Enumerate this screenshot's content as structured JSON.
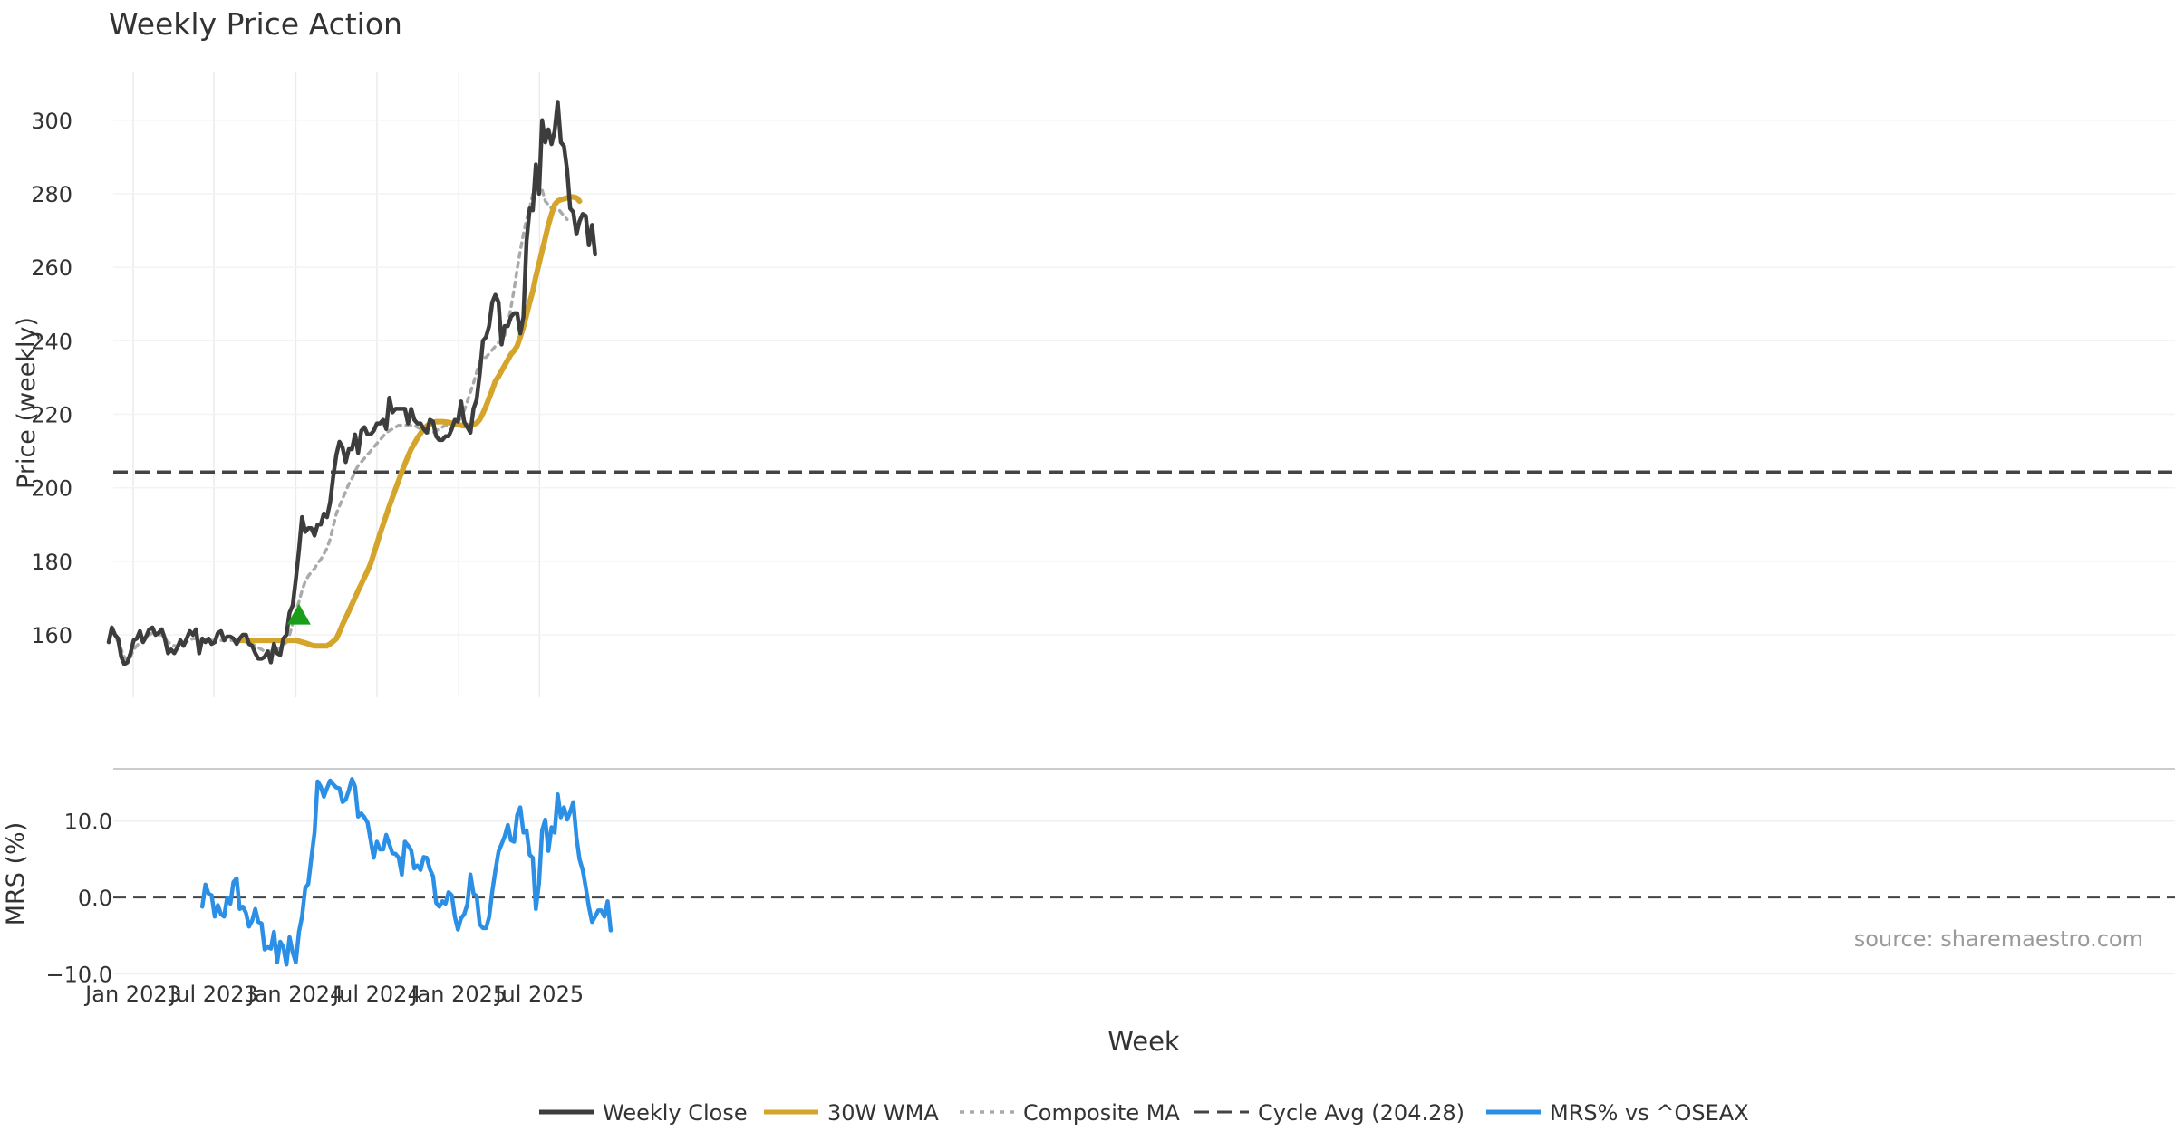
{
  "chart_data": [
    {
      "type": "line",
      "title": "Weekly Price Action",
      "ylabel": "Price (weekly)",
      "ylim": [
        143,
        313
      ],
      "yticks": [
        160,
        180,
        200,
        220,
        240,
        260,
        280,
        300
      ],
      "x_start": "2022-11-07",
      "x_step_days": 7,
      "cycle_avg": 204.28,
      "signal": {
        "week_index": 61,
        "price": 165.5,
        "color": "#1a9e1a"
      },
      "series": [
        {
          "name": "Weekly Close",
          "color": "#3d3d3d",
          "values": [
            158,
            162,
            160,
            159,
            154,
            152,
            152.5,
            155,
            158.5,
            159,
            161,
            158,
            159.5,
            161.5,
            162,
            160,
            160.5,
            161.5,
            159,
            155,
            156,
            155,
            156.5,
            158.5,
            157,
            159,
            161,
            160,
            161.5,
            155,
            159,
            158,
            159,
            157.5,
            158,
            160.5,
            161,
            158.5,
            159.5,
            159.5,
            159,
            157.5,
            159,
            160,
            160,
            157.5,
            157,
            155,
            153.5,
            153.5,
            154,
            155.5,
            152.5,
            157.5,
            155,
            154.5,
            159,
            160,
            166,
            168,
            175,
            183,
            192,
            188,
            189,
            189,
            187,
            190,
            190,
            193,
            192,
            196,
            203,
            209,
            212.5,
            211,
            207,
            210.5,
            210.5,
            214.5,
            209.5,
            215.5,
            216.5,
            214.5,
            214.5,
            215.5,
            217.5,
            217.5,
            218.5,
            216,
            224.5,
            220.5,
            221.5,
            221.5,
            221.5,
            221.5,
            217.5,
            221.5,
            218.5,
            217.5,
            217.5,
            216,
            215,
            218.5,
            218,
            214,
            213,
            213,
            214,
            214,
            216,
            218.5,
            218,
            223.5,
            218,
            216.5,
            215,
            221.5,
            224,
            231,
            240,
            241,
            244,
            250.5,
            252.5,
            250.5,
            239,
            244,
            244,
            246.5,
            247.5,
            247.5,
            242,
            246.5,
            267,
            276,
            275.5,
            288,
            280,
            300,
            294,
            297.5,
            293.5,
            297,
            305,
            294,
            293,
            286.5,
            276,
            275,
            269,
            272.5,
            274.5,
            274,
            266,
            271.5,
            263.5
          ],
          "start_index": 0
        },
        {
          "name": "30W WMA",
          "color": "#d4a52a",
          "values": [
            158.5,
            158.5,
            158.5,
            158.5,
            158.5,
            158.5,
            158.5,
            158.5,
            158.5,
            158.5,
            158.5,
            158.5,
            158.5,
            158.5,
            158.5,
            158.5,
            158.5,
            158.5,
            158.5,
            158.3,
            158,
            157.8,
            157.5,
            157.2,
            157,
            157,
            157,
            157,
            157,
            157.5,
            158.2,
            159,
            160.8,
            162.8,
            164.6,
            166.4,
            168.3,
            170.1,
            172,
            173.8,
            175.6,
            177.4,
            179.4,
            182,
            184.7,
            187.5,
            190,
            192.5,
            195,
            197.4,
            199.7,
            202,
            204.3,
            206.5,
            208.6,
            210.5,
            212,
            213.5,
            214.8,
            216,
            216.8,
            217.4,
            217.8,
            218,
            218,
            218,
            217.9,
            217.8,
            217.6,
            217.4,
            217.2,
            217,
            216.9,
            216.9,
            217,
            217.2,
            217.6,
            218.6,
            220.3,
            222.2,
            224.4,
            226.6,
            229,
            230.3,
            231.8,
            233.3,
            234.8,
            236.3,
            237.3,
            238.6,
            241,
            243.8,
            247,
            250.5,
            253.5,
            257.5,
            261,
            264.5,
            268,
            271.5,
            274.5,
            277,
            278,
            278.4,
            278.6,
            278.9,
            279.2,
            279.1,
            278.9,
            278
          ],
          "start_index": 42
        },
        {
          "name": "Composite MA",
          "color": "#aaaaaa",
          "values": [
            158,
            161,
            160,
            158,
            156,
            154,
            153,
            154,
            156,
            157,
            158,
            159,
            159.5,
            160,
            160.5,
            160.5,
            160,
            160,
            159,
            158,
            157.5,
            157,
            157,
            157,
            157.5,
            158,
            158.5,
            159,
            159,
            158.5,
            158.5,
            158.5,
            158.5,
            158.5,
            158.5,
            158.5,
            158.5,
            158.5,
            158.5,
            158.5,
            158.5,
            158.5,
            158.5,
            158.5,
            158,
            158,
            157.5,
            157,
            156.5,
            156,
            155.5,
            155.5,
            155.5,
            156,
            156,
            156.5,
            157,
            158,
            160,
            163,
            166,
            169,
            172,
            174.5,
            176,
            177,
            178,
            179.5,
            180.5,
            182,
            183.5,
            186,
            189.5,
            193,
            195,
            197,
            199,
            201,
            202.5,
            204.5,
            206,
            207,
            208,
            209,
            210,
            211,
            212,
            213,
            214,
            215,
            215.5,
            216,
            216.5,
            217,
            217,
            217,
            217,
            217,
            217,
            216.5,
            216,
            215.5,
            215,
            215,
            215,
            215.5,
            216,
            216.5,
            217,
            217,
            217,
            217,
            218,
            219,
            221,
            223.5,
            226,
            228.5,
            231.5,
            234.5,
            235.5,
            235.5,
            236.5,
            237.5,
            238.5,
            239.5,
            240,
            241.5,
            244.5,
            249,
            254,
            259.5,
            264.5,
            269,
            273,
            276,
            280,
            281,
            282,
            281,
            278,
            277,
            276,
            276,
            276,
            275,
            274,
            273
          ],
          "start_index": 0
        }
      ]
    },
    {
      "type": "line",
      "ylabel": "MRS (%)",
      "xlabel": "Week",
      "ylim": [
        -10.3,
        17.2
      ],
      "yticks": [
        10.0,
        0.0,
        -10.0
      ],
      "ytick_labels": [
        "10.0",
        "0.0",
        "−10.0"
      ],
      "x_start": "2022-11-07",
      "x_step_days": 7,
      "series": [
        {
          "name": "MRS% vs ^OSEAX",
          "color": "#2b8fe6",
          "start_index": 30,
          "values": [
            -1.2,
            1.7,
            0.5,
            0.3,
            -2.5,
            -1,
            -2.2,
            -2.5,
            0,
            -0.8,
            2,
            2.5,
            -1.5,
            -1.2,
            -2,
            -3.8,
            -3,
            -1.5,
            -3.2,
            -3.4,
            -6.8,
            -6.5,
            -6.7,
            -4.5,
            -8.5,
            -5.8,
            -6.5,
            -8.8,
            -5.2,
            -7.2,
            -8.5,
            -4.5,
            -2.5,
            1.2,
            1.8,
            5.2,
            8.5,
            15.2,
            14.5,
            13.2,
            14.3,
            15.3,
            14.8,
            14.4,
            14.3,
            12.5,
            12.8,
            14,
            15.5,
            14.5,
            10.6,
            11,
            10.5,
            9.8,
            7.5,
            5.2,
            7.3,
            6.3,
            6.3,
            8.2,
            7,
            5.8,
            5.7,
            5.2,
            3,
            7.3,
            6.8,
            6.2,
            3.8,
            4.2,
            3.6,
            5.3,
            5.2,
            3.7,
            2.8,
            -0.7,
            -1.2,
            -0.5,
            -0.8,
            0.7,
            0.3,
            -2.5,
            -4.2,
            -2.7,
            -2.2,
            -0.9,
            3,
            0.5,
            0.2,
            -3.5,
            -4,
            -4,
            -2.6,
            0.8,
            3.5,
            6,
            7,
            8,
            9.5,
            7.5,
            7.3,
            10.8,
            11.8,
            8.5,
            8.8,
            5.6,
            5.2,
            -1.5,
            1.9,
            8.8,
            10.2,
            6.1,
            9.2,
            8.5,
            13.5,
            10.5,
            11.8,
            10.2,
            11.2,
            12.5,
            7.9,
            5,
            3.6,
            1.3,
            -1.2,
            -3.2,
            -2.5,
            -1.7,
            -1.7,
            -2.5,
            -0.5,
            -4.3
          ]
        }
      ]
    }
  ],
  "x_axis": {
    "ticks": [
      {
        "label": "Jan 2023",
        "date": "2023-01-01"
      },
      {
        "label": "Jul 2023",
        "date": "2023-07-01"
      },
      {
        "label": "Jan 2024",
        "date": "2024-01-01"
      },
      {
        "label": "Jul 2024",
        "date": "2024-07-01"
      },
      {
        "label": "Jan 2025",
        "date": "2025-01-01"
      },
      {
        "label": "Jul 2025",
        "date": "2025-07-01"
      }
    ],
    "label": "Week"
  },
  "legend": [
    {
      "label": "Weekly Close",
      "color": "#3d3d3d",
      "style": "solid"
    },
    {
      "label": "30W WMA",
      "color": "#d4a52a",
      "style": "solid"
    },
    {
      "label": "Composite MA",
      "color": "#aaaaaa",
      "style": "dotted"
    },
    {
      "label": "Cycle Avg (204.28)",
      "color": "#444444",
      "style": "dashed"
    },
    {
      "label": "MRS% vs ^OSEAX",
      "color": "#2b8fe6",
      "style": "solid"
    }
  ],
  "source_text": "source: sharemaestro.com"
}
